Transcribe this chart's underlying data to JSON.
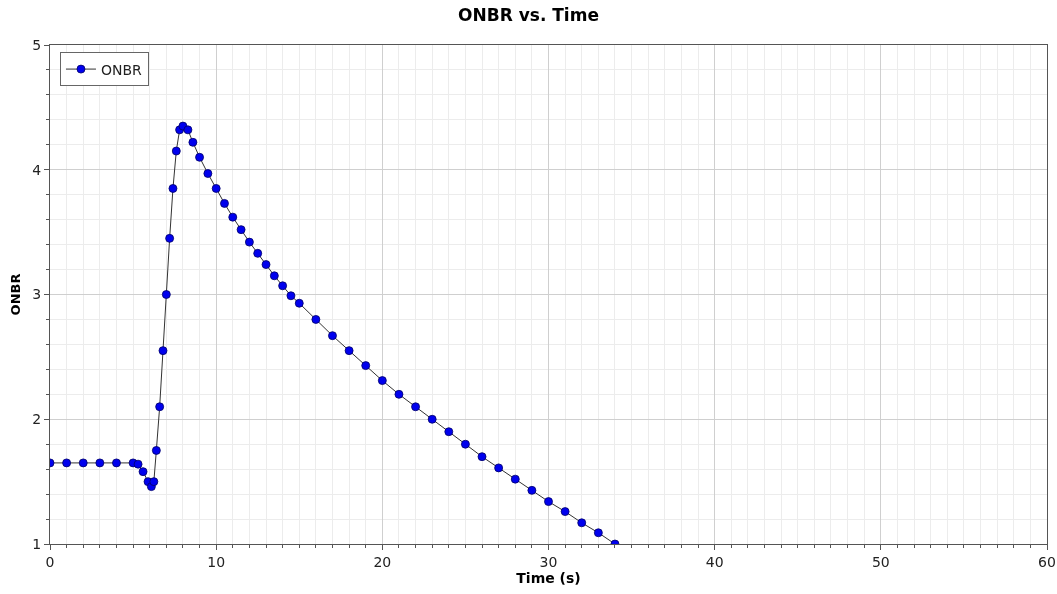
{
  "chart_data": {
    "type": "line",
    "title": "ONBR vs. Time",
    "xlabel": "Time (s)",
    "ylabel": "ONBR",
    "x": [
      0,
      1,
      2,
      3,
      4,
      5,
      5.3,
      5.6,
      5.9,
      6.1,
      6.25,
      6.4,
      6.6,
      6.8,
      7.0,
      7.2,
      7.4,
      7.6,
      7.8,
      8.0,
      8.3,
      8.6,
      9,
      9.5,
      10,
      10.5,
      11,
      11.5,
      12,
      12.5,
      13,
      13.5,
      14,
      14.5,
      15,
      16,
      17,
      18,
      19,
      20,
      21,
      22,
      23,
      24,
      25,
      26,
      27,
      28,
      29,
      30,
      31,
      32,
      33,
      34
    ],
    "series": [
      {
        "name": "ONBR",
        "color": "#0000ee",
        "values": [
          1.65,
          1.65,
          1.65,
          1.65,
          1.65,
          1.65,
          1.64,
          1.58,
          1.5,
          1.46,
          1.5,
          1.75,
          2.1,
          2.55,
          3.0,
          3.45,
          3.85,
          4.15,
          4.32,
          4.35,
          4.32,
          4.22,
          4.1,
          3.97,
          3.85,
          3.73,
          3.62,
          3.52,
          3.42,
          3.33,
          3.24,
          3.15,
          3.07,
          2.99,
          2.93,
          2.8,
          2.67,
          2.55,
          2.43,
          2.31,
          2.2,
          2.1,
          2.0,
          1.9,
          1.8,
          1.7,
          1.61,
          1.52,
          1.43,
          1.34,
          1.26,
          1.17,
          1.09,
          1.0
        ]
      }
    ],
    "xlim": [
      0,
      60
    ],
    "xticks": [
      0,
      10,
      20,
      30,
      40,
      50,
      60
    ],
    "ylim": [
      1,
      5
    ],
    "yticks": [
      1,
      2,
      3,
      4,
      5
    ],
    "grid": true,
    "legend": "top left",
    "marker": "circle",
    "line_style": "solid"
  }
}
